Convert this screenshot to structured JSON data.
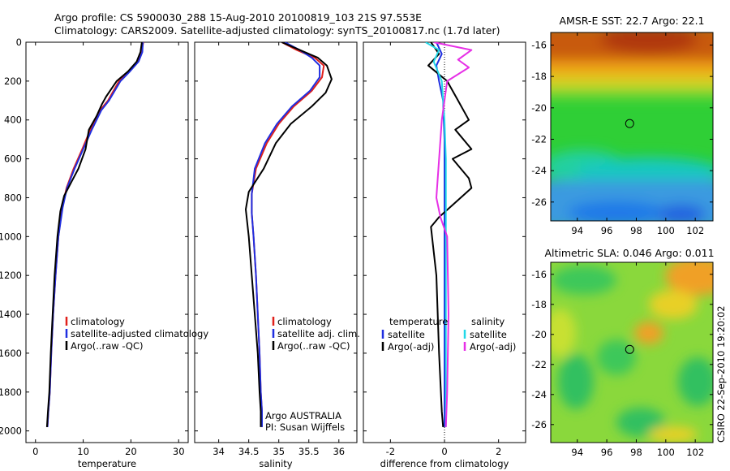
{
  "title_line1": "Argo profile: CS 5900030_288 15-Aug-2010 20100819_103 21S 97.553E",
  "title_line2": "Climatology: CARS2009. Satellite-adjusted climatology: synTS_20100817.nc (1.7d later)",
  "side_label": "CSIRO 22-Sep-2010 19:20:02",
  "colors": {
    "climatology": "#e0201b",
    "satellite": "#1f2ee0",
    "argo": "#000000",
    "satellite_salinity": "#22d8e8",
    "argo_salinity": "#e630e6"
  },
  "chart_data": [
    {
      "type": "line",
      "xlabel": "temperature",
      "xlim": [
        -2,
        32
      ],
      "xticks": [
        "0",
        "10",
        "20",
        "30"
      ],
      "ylim": [
        0,
        2060
      ],
      "yticks": [
        "0",
        "200",
        "400",
        "600",
        "800",
        "1000",
        "1200",
        "1400",
        "1600",
        "1800",
        "2000"
      ],
      "inverted_y": true,
      "legend_position": "center-right",
      "series": [
        {
          "name": "climatology",
          "color": "#e0201b",
          "x": [
            22.6,
            22.2,
            21.5,
            19.5,
            17.5,
            15.2,
            13.5,
            11.5,
            9.8,
            8.0,
            6.5,
            5.6,
            4.8,
            4.2,
            3.7,
            3.3,
            3.0,
            2.7,
            2.5
          ],
          "y": [
            0,
            50,
            100,
            150,
            200,
            300,
            350,
            450,
            550,
            650,
            750,
            850,
            1000,
            1200,
            1400,
            1600,
            1800,
            1900,
            1980
          ]
        },
        {
          "name": "satellite-adjusted climatology",
          "color": "#1f2ee0",
          "x": [
            22.5,
            22.4,
            21.6,
            19.8,
            17.8,
            15.4,
            13.8,
            11.8,
            10.0,
            8.2,
            6.6,
            5.7,
            4.8,
            4.2,
            3.7,
            3.3,
            3.0,
            2.7,
            2.5
          ],
          "y": [
            0,
            50,
            100,
            150,
            200,
            300,
            350,
            450,
            550,
            650,
            750,
            850,
            1000,
            1200,
            1400,
            1600,
            1800,
            1900,
            1980
          ]
        },
        {
          "name": "Argo(..raw -QC)",
          "color": "#000000",
          "x": [
            22.3,
            22.0,
            21.2,
            19.4,
            17.0,
            14.8,
            13.9,
            12.8,
            11.2,
            10.5,
            9.0,
            7.5,
            6.0,
            5.2,
            4.6,
            4.0,
            3.6,
            3.2,
            2.9,
            2.6,
            2.4
          ],
          "y": [
            0,
            50,
            100,
            150,
            200,
            280,
            320,
            380,
            450,
            550,
            650,
            720,
            790,
            870,
            1000,
            1200,
            1400,
            1600,
            1800,
            1900,
            1980
          ]
        }
      ],
      "legend": [
        "climatology",
        "satellite-adjusted climatology",
        "Argo(..raw -QC)"
      ]
    },
    {
      "type": "line",
      "xlabel": "salinity",
      "xlim": [
        33.6,
        36.3
      ],
      "xticks": [
        "34",
        "34.5",
        "35",
        "35.5",
        "36"
      ],
      "ylim": [
        0,
        2060
      ],
      "inverted_y": true,
      "legend_position": "center-right",
      "annotations": [
        "Argo AUSTRALIA",
        "PI: Susan Wijffels"
      ],
      "series": [
        {
          "name": "climatology",
          "color": "#e0201b",
          "x": [
            35.05,
            35.3,
            35.6,
            35.75,
            35.72,
            35.55,
            35.25,
            35.0,
            34.8,
            34.62,
            34.55,
            34.55,
            34.58,
            34.62,
            34.65,
            34.68,
            34.7,
            34.72,
            34.72
          ],
          "y": [
            0,
            40,
            80,
            120,
            180,
            250,
            330,
            420,
            520,
            650,
            780,
            880,
            1000,
            1200,
            1400,
            1600,
            1800,
            1900,
            1980
          ]
        },
        {
          "name": "satellite adj. clim.",
          "color": "#1f2ee0",
          "x": [
            35.1,
            35.35,
            35.55,
            35.68,
            35.68,
            35.52,
            35.22,
            34.97,
            34.77,
            34.6,
            34.55,
            34.55,
            34.58,
            34.62,
            34.65,
            34.68,
            34.7,
            34.72,
            34.72
          ],
          "y": [
            0,
            40,
            80,
            120,
            180,
            250,
            330,
            420,
            520,
            650,
            780,
            880,
            1000,
            1200,
            1400,
            1600,
            1800,
            1900,
            1980
          ]
        },
        {
          "name": "Argo(..raw -QC)",
          "color": "#000000",
          "x": [
            35.05,
            35.35,
            35.65,
            35.8,
            35.88,
            35.78,
            35.55,
            35.2,
            34.95,
            34.75,
            34.5,
            34.45,
            34.5,
            34.55,
            34.6,
            34.65,
            34.68,
            34.7,
            34.7
          ],
          "y": [
            0,
            40,
            80,
            120,
            190,
            260,
            330,
            420,
            520,
            650,
            770,
            860,
            1000,
            1200,
            1400,
            1600,
            1800,
            1900,
            1980
          ]
        }
      ],
      "legend": [
        "climatology",
        "satellite adj. clim.",
        "Argo(..raw -QC)"
      ]
    },
    {
      "type": "line",
      "xlabel": "difference from climatology",
      "xlim": [
        -3,
        3
      ],
      "xticks": [
        "-2",
        "0",
        "2"
      ],
      "ylim": [
        0,
        2060
      ],
      "inverted_y": true,
      "legend_position": "center",
      "legend_groups": [
        "temperature",
        "salinity"
      ],
      "series": [
        {
          "name": "satellite",
          "group": "temperature",
          "color": "#1f2ee0",
          "x": [
            -0.3,
            -0.1,
            -0.3,
            -0.2,
            -0.05,
            0.0,
            0.0,
            0.0,
            0.0,
            0.0,
            0.0
          ],
          "y": [
            0,
            60,
            120,
            200,
            300,
            500,
            800,
            1200,
            1600,
            1900,
            1980
          ]
        },
        {
          "name": "Argo(-adj)",
          "group": "temperature",
          "color": "#000000",
          "x": [
            -0.5,
            -0.2,
            -0.6,
            0.1,
            0.5,
            0.9,
            0.4,
            1.0,
            0.3,
            0.9,
            1.0,
            0.2,
            -0.2,
            -0.5,
            -0.3,
            -0.2,
            -0.1,
            -0.05
          ],
          "y": [
            0,
            60,
            120,
            200,
            300,
            400,
            450,
            550,
            600,
            700,
            750,
            850,
            900,
            950,
            1200,
            1600,
            1900,
            1980
          ]
        },
        {
          "name": "satellite",
          "group": "salinity",
          "color": "#22d8e8",
          "x": [
            -0.7,
            -0.2,
            -0.4,
            -0.1,
            0.0,
            0.05,
            0.05,
            0.05,
            0.05,
            0.05,
            0.05
          ],
          "y": [
            0,
            40,
            100,
            200,
            400,
            600,
            800,
            1200,
            1600,
            1900,
            1980
          ]
        },
        {
          "name": "Argo(-adj)",
          "group": "salinity",
          "color": "#e630e6",
          "x": [
            -0.4,
            1.0,
            0.5,
            0.9,
            0.1,
            -0.1,
            -0.3,
            -0.15,
            0.1,
            0.15,
            0.1,
            0.05
          ],
          "y": [
            0,
            40,
            90,
            130,
            200,
            400,
            800,
            900,
            1000,
            1400,
            1800,
            1980
          ]
        }
      ],
      "legend": [
        "satellite",
        "Argo(-adj)",
        "satellite",
        "Argo(-adj)"
      ]
    },
    {
      "type": "heatmap",
      "title": "AMSR-E SST: 22.7 Argo: 22.1",
      "xticks": [
        "94",
        "96",
        "98",
        "100",
        "102"
      ],
      "yticks": [
        "-16",
        "-18",
        "-20",
        "-22",
        "-24",
        "-26"
      ],
      "xlim": [
        92.2,
        103.2
      ],
      "ylim": [
        -27.2,
        -15.2
      ],
      "marker": {
        "x": 97.55,
        "y": -21.0
      }
    },
    {
      "type": "heatmap",
      "title": "Altimetric SLA: 0.046 Argo: 0.011",
      "xticks": [
        "94",
        "96",
        "98",
        "100",
        "102"
      ],
      "yticks": [
        "-16",
        "-18",
        "-20",
        "-22",
        "-24",
        "-26"
      ],
      "xlim": [
        92.2,
        103.2
      ],
      "ylim": [
        -27.2,
        -15.2
      ],
      "marker": {
        "x": 97.55,
        "y": -21.0
      }
    }
  ]
}
